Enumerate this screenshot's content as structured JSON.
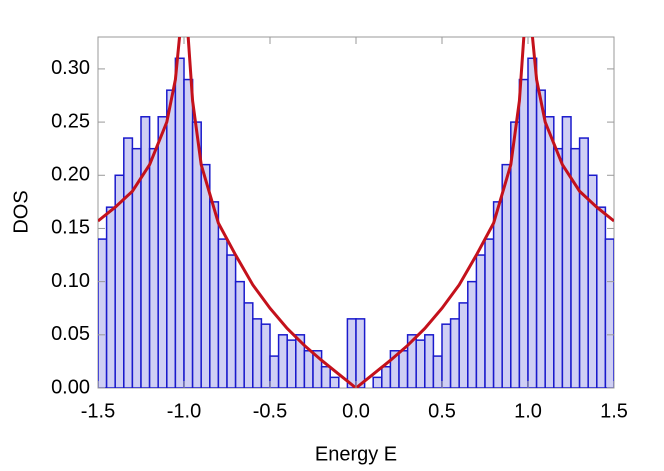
{
  "chart_data": {
    "type": "histogram",
    "xlabel": "Energy E",
    "ylabel": "DOS",
    "bins": [
      -1.5,
      -1.45,
      -1.4,
      -1.35,
      -1.3,
      -1.25,
      -1.2,
      -1.15,
      -1.1,
      -1.05,
      -1.0,
      -0.95,
      -0.9,
      -0.85,
      -0.8,
      -0.75,
      -0.7,
      -0.65,
      -0.6,
      -0.55,
      -0.5,
      -0.45,
      -0.4,
      -0.35,
      -0.3,
      -0.25,
      -0.2,
      -0.15,
      -0.1,
      -0.05,
      0,
      0.05,
      0.1,
      0.15,
      0.2,
      0.25,
      0.3,
      0.35,
      0.4,
      0.45,
      0.5,
      0.55,
      0.6,
      0.65,
      0.7,
      0.75,
      0.8,
      0.85,
      0.9,
      0.95,
      1.0,
      1.05,
      1.1,
      1.15,
      1.2,
      1.25,
      1.3,
      1.35,
      1.4,
      1.45,
      1.5
    ],
    "values": [
      0.14,
      0.17,
      0.2,
      0.235,
      0.225,
      0.255,
      0.225,
      0.255,
      0.28,
      0.31,
      0.29,
      0.25,
      0.21,
      0.175,
      0.14,
      0.125,
      0.1,
      0.08,
      0.065,
      0.06,
      0.03,
      0.05,
      0.045,
      0.05,
      0.035,
      0.035,
      0.02,
      0.01,
      0.0,
      0.065,
      0.065,
      0.0,
      0.01,
      0.02,
      0.035,
      0.035,
      0.05,
      0.045,
      0.05,
      0.03,
      0.06,
      0.065,
      0.08,
      0.1,
      0.125,
      0.14,
      0.175,
      0.21,
      0.25,
      0.29,
      0.31,
      0.28,
      0.255,
      0.225,
      0.255,
      0.225,
      0.235,
      0.2,
      0.17,
      0.14
    ],
    "color": "#cfcff4",
    "edgecolor": "#1a1acc",
    "line": {
      "type": "line",
      "color": "#c4111b",
      "x": [
        -1.5,
        -1.4,
        -1.3,
        -1.2,
        -1.1,
        -1.05,
        -1.02,
        -1.0,
        -0.98,
        -0.95,
        -0.9,
        -0.8,
        -0.7,
        -0.6,
        -0.5,
        -0.4,
        -0.3,
        -0.2,
        -0.1,
        0,
        0.1,
        0.2,
        0.3,
        0.4,
        0.5,
        0.6,
        0.7,
        0.8,
        0.9,
        0.95,
        0.98,
        1.0,
        1.02,
        1.05,
        1.1,
        1.2,
        1.3,
        1.4,
        1.5
      ],
      "values": [
        0.157,
        0.17,
        0.185,
        0.21,
        0.25,
        0.29,
        0.34,
        null,
        0.34,
        0.27,
        0.21,
        0.155,
        0.125,
        0.097,
        0.075,
        0.056,
        0.04,
        0.026,
        0.013,
        0,
        0.013,
        0.026,
        0.04,
        0.056,
        0.075,
        0.097,
        0.125,
        0.155,
        0.21,
        0.27,
        0.34,
        null,
        0.34,
        0.29,
        0.25,
        0.21,
        0.185,
        0.17,
        0.157
      ]
    },
    "xlim": [
      -1.5,
      1.5
    ],
    "ylim": [
      0,
      0.33
    ],
    "xticks": [
      -1.5,
      {
        "value": -1.0,
        "label": "-1.0"
      },
      -0.5,
      {
        "value": 0,
        "label": "0.0"
      },
      0.5,
      {
        "value": 1.0,
        "label": "1.0"
      },
      1.5
    ],
    "yticks": [
      {
        "value": 0,
        "label": "0.00"
      },
      0.05,
      {
        "value": 0.1,
        "label": "0.10"
      },
      0.15,
      {
        "value": 0.2,
        "label": "0.20"
      },
      0.25,
      {
        "value": 0.3,
        "label": "0.30"
      }
    ]
  }
}
